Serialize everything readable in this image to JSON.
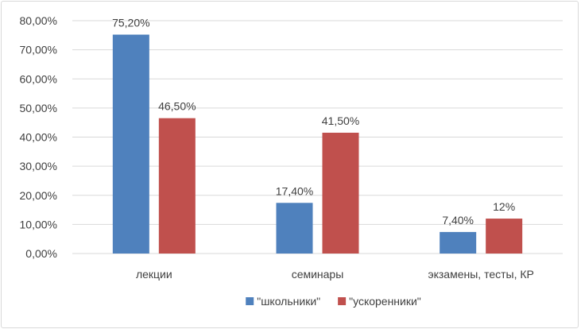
{
  "chart_data": {
    "type": "bar",
    "categories": [
      "лекции",
      "семинары",
      "экзамены, тесты, КР"
    ],
    "series": [
      {
        "name": "\"школьники\"",
        "values": [
          75.2,
          17.4,
          7.4
        ],
        "labels": [
          "75,20%",
          "17,40%",
          "7,40%"
        ],
        "color": "#4f81bd"
      },
      {
        "name": "\"ускоренники\"",
        "values": [
          46.5,
          41.5,
          12
        ],
        "labels": [
          "46,50%",
          "41,50%",
          "12%"
        ],
        "color": "#c0504d"
      }
    ],
    "ylim": [
      0,
      80
    ],
    "yticks": [
      0,
      10,
      20,
      30,
      40,
      50,
      60,
      70,
      80
    ],
    "ytick_labels": [
      "0,00%",
      "10,00%",
      "20,00%",
      "30,00%",
      "40,00%",
      "50,00%",
      "60,00%",
      "70,00%",
      "80,00%"
    ],
    "grid": true,
    "legend_position": "bottom",
    "title": "",
    "xlabel": "",
    "ylabel": ""
  }
}
